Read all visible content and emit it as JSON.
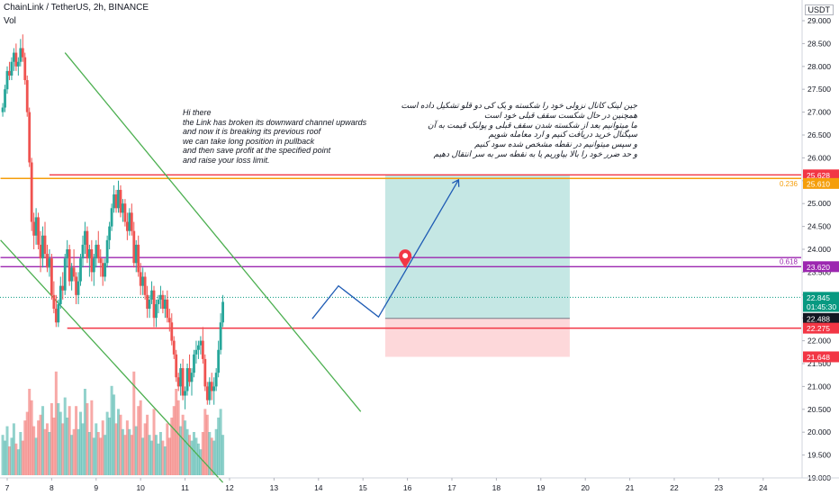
{
  "header": {
    "symbol_line": "ChainLink / TetherUS, 2h, BINANCE",
    "indicator": "Vol",
    "currency": "USDT"
  },
  "notes": {
    "english": "Hi there\nthe Link has broken its downward channel upwards\nand now it is breaking its previous roof\nwe can take long position in pullback\nand then save profit at the specified point\nand raise your loss limit.",
    "persian": "جین لینک کانال نزولی خود را شکسته و یک کی دو قلو تشکیل داده است\nهمچنین در حال شکست سقف قبلی خود است\nما میتوانیم بعد از شکسته شدن سقف قبلی و پولبک قیمت به آن\nسیگنال خرید دریافت کنیم و ارد معامله شویم\nو سپس میتوانیم در نقطه مشخص شده سود کنیم\nو حد ضرر خود را بالا بیاوریم یا به نقطه سر به سر انتقال دهیم"
  },
  "chart_data": {
    "type": "candlestick",
    "price_axis": {
      "ticks": [
        "29.000",
        "28.500",
        "28.000",
        "27.500",
        "27.000",
        "26.500",
        "26.000",
        "25.500",
        "25.000",
        "24.500",
        "24.000",
        "23.500",
        "23.000",
        "22.500",
        "22.000",
        "21.500",
        "21.000",
        "20.500",
        "20.000",
        "19.500",
        "19.000"
      ],
      "range": [
        18.9,
        29.3
      ]
    },
    "time_axis": {
      "ticks": [
        "7",
        "8",
        "9",
        "10",
        "11",
        "12",
        "13",
        "14",
        "15",
        "16",
        "17",
        "18",
        "19",
        "20",
        "21",
        "22",
        "23",
        "24"
      ]
    },
    "price_labels": [
      {
        "text": "25.628",
        "price": 25.628,
        "color": "#f23645"
      },
      {
        "text": "25.610",
        "price": 25.44,
        "color": "#f59e0b"
      },
      {
        "text": "23.620",
        "price": 23.62,
        "color": "#9c27b0"
      },
      {
        "text": "22.845",
        "price": 22.95,
        "color": "#089981"
      },
      {
        "text": "01:45:30",
        "price": 22.75,
        "color": "#089981"
      },
      {
        "text": "22.488",
        "price": 22.488,
        "color": "#131722"
      },
      {
        "text": "22.275",
        "price": 22.275,
        "color": "#f23645"
      },
      {
        "text": "21.648",
        "price": 21.648,
        "color": "#f23645"
      }
    ],
    "fib_labels": [
      {
        "text": "0.236",
        "price": 25.44,
        "color": "#f59e0b"
      },
      {
        "text": "0.618",
        "price": 23.73,
        "color": "#9c27b0"
      }
    ],
    "horizontal_lines": [
      {
        "price": 25.628,
        "color": "#f23645",
        "from_day": 7.95
      },
      {
        "price": 25.55,
        "color": "#f59e0b",
        "from_day": 6.85
      },
      {
        "price": 23.82,
        "color": "#9c27b0",
        "from_day": 6.85
      },
      {
        "price": 23.62,
        "color": "#9c27b0",
        "from_day": 6.85
      },
      {
        "price": 22.275,
        "color": "#f23645",
        "from_day": 8.35
      }
    ],
    "position": {
      "entry": 22.488,
      "target": 25.628,
      "stop": 21.648,
      "from_day": 15.5,
      "to_day": 19.65
    },
    "trendlines": [
      {
        "from": [
          8.3,
          28.3
        ],
        "to": [
          14.95,
          20.45
        ],
        "color": "#4caf50"
      },
      {
        "from": [
          6.85,
          24.2
        ],
        "to": [
          11.85,
          18.9
        ],
        "color": "#4caf50"
      }
    ],
    "projection": [
      [
        13.86,
        22.48
      ],
      [
        14.45,
        23.2
      ],
      [
        15.35,
        22.52
      ],
      [
        17.15,
        25.52
      ]
    ],
    "marker": {
      "day": 15.95,
      "price": 23.82
    },
    "candles": [
      [
        6.9,
        27.0,
        27.2,
        26.9,
        27.1
      ],
      [
        6.95,
        27.1,
        27.6,
        27.0,
        27.5
      ],
      [
        7.0,
        27.5,
        28.0,
        27.4,
        27.9
      ],
      [
        7.05,
        27.9,
        28.1,
        27.7,
        27.8
      ],
      [
        7.1,
        27.8,
        28.2,
        27.7,
        28.1
      ],
      [
        7.15,
        28.1,
        28.4,
        27.9,
        28.3
      ],
      [
        7.2,
        28.3,
        28.5,
        27.9,
        28.0
      ],
      [
        7.25,
        28.0,
        28.2,
        27.8,
        28.1
      ],
      [
        7.3,
        28.1,
        28.6,
        28.0,
        28.4
      ],
      [
        7.35,
        28.4,
        28.7,
        28.1,
        28.2
      ],
      [
        7.4,
        28.2,
        28.3,
        27.6,
        27.7
      ],
      [
        7.45,
        27.7,
        27.8,
        26.9,
        27.0
      ],
      [
        7.5,
        27.0,
        27.1,
        25.8,
        25.9
      ],
      [
        7.55,
        25.9,
        26.0,
        24.4,
        24.6
      ],
      [
        7.6,
        24.6,
        24.8,
        24.0,
        24.3
      ],
      [
        7.65,
        24.3,
        24.9,
        24.1,
        24.7
      ],
      [
        7.7,
        24.7,
        24.8,
        24.0,
        24.1
      ],
      [
        7.75,
        24.1,
        24.4,
        23.5,
        23.8
      ],
      [
        7.8,
        23.8,
        24.5,
        23.6,
        24.3
      ],
      [
        7.85,
        24.3,
        24.6,
        23.8,
        23.9
      ],
      [
        7.9,
        23.9,
        24.1,
        23.5,
        23.6
      ],
      [
        7.95,
        23.6,
        24.0,
        23.4,
        23.8
      ],
      [
        8.0,
        23.8,
        23.9,
        22.9,
        23.0
      ],
      [
        8.05,
        23.0,
        23.3,
        22.6,
        22.7
      ],
      [
        8.1,
        22.7,
        23.0,
        22.3,
        22.4
      ],
      [
        8.15,
        22.4,
        22.9,
        22.3,
        22.8
      ],
      [
        8.2,
        22.8,
        23.4,
        22.7,
        23.2
      ],
      [
        8.25,
        23.2,
        23.5,
        22.9,
        23.1
      ],
      [
        8.3,
        23.1,
        23.9,
        23.0,
        23.8
      ],
      [
        8.35,
        23.8,
        24.2,
        23.6,
        24.0
      ],
      [
        8.4,
        24.0,
        24.1,
        23.2,
        23.3
      ],
      [
        8.45,
        23.3,
        23.7,
        23.1,
        23.6
      ],
      [
        8.5,
        23.6,
        24.0,
        23.3,
        23.4
      ],
      [
        8.55,
        23.4,
        23.5,
        22.8,
        23.0
      ],
      [
        8.6,
        23.0,
        23.5,
        22.8,
        23.3
      ],
      [
        8.65,
        23.3,
        23.9,
        23.2,
        23.8
      ],
      [
        8.7,
        23.8,
        24.3,
        23.6,
        24.1
      ],
      [
        8.75,
        24.1,
        24.6,
        23.9,
        24.4
      ],
      [
        8.8,
        24.4,
        24.5,
        23.7,
        23.8
      ],
      [
        8.85,
        23.8,
        24.1,
        23.4,
        24.0
      ],
      [
        8.9,
        24.0,
        24.2,
        23.3,
        23.5
      ],
      [
        8.95,
        23.5,
        23.9,
        23.2,
        23.8
      ],
      [
        9.0,
        23.8,
        24.2,
        23.6,
        24.1
      ],
      [
        9.05,
        24.1,
        24.4,
        23.7,
        23.8
      ],
      [
        9.1,
        23.8,
        24.0,
        23.4,
        23.7
      ],
      [
        9.15,
        23.7,
        23.8,
        23.2,
        23.4
      ],
      [
        9.2,
        23.4,
        23.8,
        23.3,
        23.7
      ],
      [
        9.25,
        23.7,
        24.3,
        23.6,
        24.2
      ],
      [
        9.3,
        24.2,
        24.6,
        24.0,
        24.5
      ],
      [
        9.35,
        24.5,
        25.0,
        24.4,
        24.9
      ],
      [
        9.4,
        24.9,
        25.4,
        24.8,
        25.2
      ],
      [
        9.45,
        25.2,
        25.3,
        24.8,
        24.9
      ],
      [
        9.5,
        24.9,
        25.5,
        24.8,
        25.3
      ],
      [
        9.55,
        25.3,
        25.4,
        24.7,
        24.8
      ],
      [
        9.6,
        24.8,
        25.1,
        24.6,
        25.0
      ],
      [
        9.65,
        25.0,
        25.1,
        24.5,
        24.6
      ],
      [
        9.7,
        24.6,
        24.8,
        24.2,
        24.4
      ],
      [
        9.75,
        24.4,
        24.9,
        24.3,
        24.8
      ],
      [
        9.8,
        24.8,
        25.0,
        24.3,
        24.4
      ],
      [
        9.85,
        24.4,
        24.6,
        23.6,
        23.7
      ],
      [
        9.9,
        23.7,
        24.2,
        23.5,
        24.1
      ],
      [
        9.95,
        24.1,
        24.3,
        23.4,
        23.5
      ],
      [
        10.0,
        23.5,
        23.7,
        23.0,
        23.2
      ],
      [
        10.05,
        23.2,
        23.6,
        23.0,
        23.4
      ],
      [
        10.1,
        23.4,
        23.5,
        22.9,
        23.0
      ],
      [
        10.15,
        23.0,
        23.2,
        22.5,
        22.7
      ],
      [
        10.2,
        22.7,
        23.0,
        22.5,
        22.9
      ],
      [
        10.25,
        22.9,
        23.3,
        22.8,
        23.1
      ],
      [
        10.3,
        23.1,
        23.2,
        22.3,
        22.5
      ],
      [
        10.35,
        22.5,
        22.9,
        22.3,
        22.8
      ],
      [
        10.4,
        22.8,
        23.0,
        22.6,
        22.9
      ],
      [
        10.45,
        22.9,
        23.2,
        22.7,
        23.0
      ],
      [
        10.5,
        23.0,
        23.1,
        22.6,
        22.7
      ],
      [
        10.55,
        22.7,
        23.0,
        22.5,
        22.9
      ],
      [
        10.6,
        22.9,
        23.1,
        22.4,
        22.5
      ],
      [
        10.65,
        22.5,
        22.7,
        22.2,
        22.4
      ],
      [
        10.7,
        22.4,
        22.6,
        21.9,
        22.0
      ],
      [
        10.75,
        22.0,
        22.1,
        21.6,
        21.7
      ],
      [
        10.8,
        21.7,
        21.8,
        21.1,
        21.2
      ],
      [
        10.85,
        21.2,
        21.3,
        20.9,
        21.0
      ],
      [
        10.9,
        21.0,
        21.5,
        20.8,
        21.4
      ],
      [
        10.95,
        21.4,
        21.6,
        20.7,
        20.8
      ],
      [
        11.0,
        20.8,
        21.0,
        20.5,
        20.9
      ],
      [
        11.05,
        20.9,
        21.5,
        20.8,
        21.4
      ],
      [
        11.1,
        21.4,
        21.7,
        21.0,
        21.1
      ],
      [
        11.15,
        21.1,
        21.4,
        20.8,
        21.3
      ],
      [
        11.2,
        21.3,
        21.8,
        21.2,
        21.7
      ],
      [
        11.25,
        21.7,
        22.0,
        21.5,
        21.8
      ],
      [
        11.3,
        21.8,
        22.0,
        21.6,
        21.9
      ],
      [
        11.35,
        21.9,
        22.1,
        21.7,
        22.0
      ],
      [
        11.4,
        22.0,
        22.3,
        21.5,
        21.6
      ],
      [
        11.45,
        21.6,
        21.7,
        20.9,
        21.0
      ],
      [
        11.5,
        21.0,
        21.1,
        20.6,
        20.7
      ],
      [
        11.55,
        20.7,
        21.2,
        20.6,
        21.1
      ],
      [
        11.6,
        21.1,
        21.3,
        20.7,
        20.9
      ],
      [
        11.65,
        20.9,
        21.2,
        20.6,
        21.0
      ],
      [
        11.7,
        21.0,
        21.4,
        20.9,
        21.3
      ],
      [
        11.75,
        21.3,
        22.0,
        21.2,
        21.8
      ],
      [
        11.8,
        21.8,
        22.6,
        21.7,
        22.4
      ],
      [
        11.85,
        22.4,
        23.0,
        22.3,
        22.85
      ]
    ],
    "volumes": [
      [
        6.9,
        1.4
      ],
      [
        6.95,
        1.2
      ],
      [
        7.0,
        1.7
      ],
      [
        7.05,
        1.0
      ],
      [
        7.1,
        1.3
      ],
      [
        7.15,
        1.8
      ],
      [
        7.2,
        1.1
      ],
      [
        7.25,
        0.9
      ],
      [
        7.3,
        1.5
      ],
      [
        7.35,
        1.2
      ],
      [
        7.4,
        1.9
      ],
      [
        7.45,
        2.2
      ],
      [
        7.5,
        3.0
      ],
      [
        7.55,
        2.6
      ],
      [
        7.6,
        1.7
      ],
      [
        7.65,
        1.3
      ],
      [
        7.7,
        1.9
      ],
      [
        7.75,
        2.1
      ],
      [
        7.8,
        2.4
      ],
      [
        7.85,
        1.6
      ],
      [
        7.9,
        1.8
      ],
      [
        7.95,
        1.5
      ],
      [
        8.0,
        2.5
      ],
      [
        8.05,
        2.0
      ],
      [
        8.1,
        3.6
      ],
      [
        8.15,
        2.5
      ],
      [
        8.2,
        2.2
      ],
      [
        8.25,
        1.8
      ],
      [
        8.3,
        2.7
      ],
      [
        8.35,
        2.0
      ],
      [
        8.4,
        2.4
      ],
      [
        8.45,
        1.4
      ],
      [
        8.5,
        1.6
      ],
      [
        8.55,
        2.4
      ],
      [
        8.6,
        1.6
      ],
      [
        8.65,
        2.2
      ],
      [
        8.7,
        1.8
      ],
      [
        8.75,
        3.0
      ],
      [
        8.8,
        2.5
      ],
      [
        8.85,
        1.5
      ],
      [
        8.9,
        2.6
      ],
      [
        8.95,
        1.3
      ],
      [
        9.0,
        1.8
      ],
      [
        9.05,
        1.5
      ],
      [
        9.1,
        1.3
      ],
      [
        9.15,
        1.9
      ],
      [
        9.2,
        1.4
      ],
      [
        9.25,
        2.2
      ],
      [
        9.3,
        2.0
      ],
      [
        9.35,
        3.1
      ],
      [
        9.4,
        2.8
      ],
      [
        9.45,
        1.8
      ],
      [
        9.5,
        2.3
      ],
      [
        9.55,
        2.1
      ],
      [
        9.6,
        1.6
      ],
      [
        9.65,
        1.4
      ],
      [
        9.7,
        1.9
      ],
      [
        9.75,
        1.6
      ],
      [
        9.8,
        1.4
      ],
      [
        9.85,
        3.6
      ],
      [
        9.9,
        1.7
      ],
      [
        9.95,
        2.4
      ],
      [
        10.0,
        2.6
      ],
      [
        10.05,
        1.3
      ],
      [
        10.1,
        1.8
      ],
      [
        10.15,
        2.1
      ],
      [
        10.2,
        1.4
      ],
      [
        10.25,
        1.2
      ],
      [
        10.3,
        2.3
      ],
      [
        10.35,
        1.4
      ],
      [
        10.4,
        1.1
      ],
      [
        10.45,
        1.5
      ],
      [
        10.5,
        1.2
      ],
      [
        10.55,
        1.0
      ],
      [
        10.6,
        1.8
      ],
      [
        10.65,
        1.3
      ],
      [
        10.7,
        2.0
      ],
      [
        10.75,
        2.4
      ],
      [
        10.8,
        3.0
      ],
      [
        10.85,
        2.6
      ],
      [
        10.9,
        1.7
      ],
      [
        10.95,
        2.1
      ],
      [
        11.0,
        1.9
      ],
      [
        11.05,
        1.6
      ],
      [
        11.1,
        1.4
      ],
      [
        11.15,
        1.2
      ],
      [
        11.2,
        1.5
      ],
      [
        11.25,
        1.3
      ],
      [
        11.3,
        1.1
      ],
      [
        11.35,
        0.9
      ],
      [
        11.4,
        1.5
      ],
      [
        11.45,
        2.3
      ],
      [
        11.5,
        2.1
      ],
      [
        11.55,
        1.5
      ],
      [
        11.6,
        1.3
      ],
      [
        11.65,
        1.2
      ],
      [
        11.7,
        1.6
      ],
      [
        11.75,
        2.0
      ],
      [
        11.8,
        2.3
      ],
      [
        11.85,
        1.4
      ]
    ]
  }
}
